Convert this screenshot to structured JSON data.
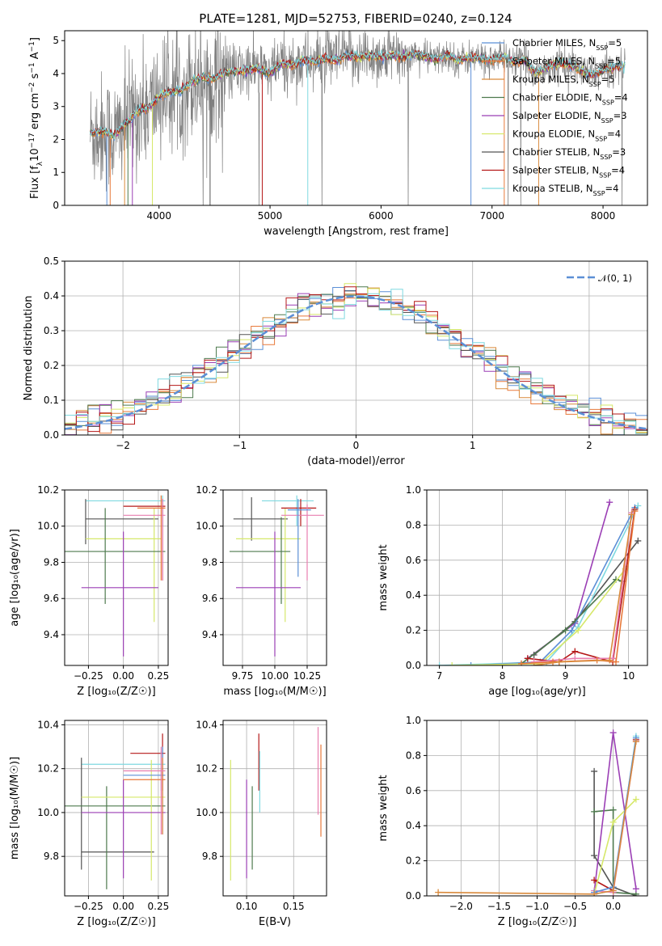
{
  "figure_title": "PLATE=1281, MJD=52753, FIBERID=0240, z=0.124",
  "colors": {
    "chabrier_miles": "#5b8fd6",
    "salpeter_miles": "#e8793a",
    "kroupa_miles": "#d98a3c",
    "chabrier_elodie": "#4e7a4e",
    "salpeter_elodie": "#9b3fb5",
    "kroupa_elodie": "#d6e86a",
    "chabrier_stelib": "#555555",
    "salpeter_stelib": "#b51818",
    "kroupa_stelib": "#7fd9e0",
    "pink": "#e87fb0",
    "data": "#808080"
  },
  "chart_data": [
    {
      "id": "spectrum",
      "type": "line",
      "xlabel": "wavelength [Angstrom, rest frame]",
      "ylabel": "Flux [f_λ 10^-17 erg cm^-2 s^-1 A^-1]",
      "xlim": [
        3150,
        8400
      ],
      "ylim": [
        0,
        5.3
      ],
      "xticks": [
        "4000",
        "5000",
        "6000",
        "7000",
        "8000"
      ],
      "yticks": [
        "0",
        "1",
        "2",
        "3",
        "4",
        "5"
      ],
      "legend_position": "top-right",
      "legend": [
        {
          "label": "Chabrier MILES, N",
          "sub": "SSP",
          "suffix": "=5",
          "color": "#5b8fd6"
        },
        {
          "label": "Salpeter MILES, N",
          "sub": "SSP",
          "suffix": "=5",
          "color": "#e8793a"
        },
        {
          "label": "Kroupa MILES, N",
          "sub": "SSP",
          "suffix": "=5",
          "color": "#d98a3c"
        },
        {
          "label": "Chabrier ELODIE, N",
          "sub": "SSP",
          "suffix": "=4",
          "color": "#4e7a4e"
        },
        {
          "label": "Salpeter ELODIE, N",
          "sub": "SSP",
          "suffix": "=3",
          "color": "#9b3fb5"
        },
        {
          "label": "Kroupa ELODIE, N",
          "sub": "SSP",
          "suffix": "=4",
          "color": "#d6e86a"
        },
        {
          "label": "Chabrier STELIB, N",
          "sub": "SSP",
          "suffix": "=3",
          "color": "#555555"
        },
        {
          "label": "Salpeter STELIB, N",
          "sub": "SSP",
          "suffix": "=4",
          "color": "#b51818"
        },
        {
          "label": "Kroupa STELIB, N",
          "sub": "SSP",
          "suffix": "=4",
          "color": "#7fd9e0"
        }
      ],
      "model_x": [
        3380,
        3500,
        3600,
        3700,
        3800,
        3900,
        4000,
        4100,
        4200,
        4300,
        4400,
        4500,
        4600,
        4700,
        4800,
        4900,
        5000,
        5100,
        5200,
        5300,
        5400,
        5500,
        5600,
        5700,
        5800,
        5900,
        6000,
        6100,
        6200,
        6300,
        6400,
        6500,
        6600,
        6700,
        6800,
        6900,
        7000,
        7100,
        7200,
        7300,
        7400,
        7500,
        7600,
        7700,
        7800,
        7900,
        8000,
        8100,
        8200
      ],
      "model_y": [
        2.2,
        2.25,
        2.1,
        2.5,
        2.85,
        2.95,
        3.3,
        3.45,
        3.5,
        3.75,
        3.9,
        3.85,
        4.05,
        4.05,
        4.1,
        4.15,
        4.0,
        4.3,
        4.25,
        4.4,
        4.35,
        4.45,
        4.4,
        4.55,
        4.5,
        4.55,
        4.5,
        4.55,
        4.5,
        4.6,
        4.5,
        4.45,
        4.55,
        4.4,
        4.5,
        4.45,
        4.4,
        4.5,
        4.35,
        4.4,
        4.0,
        4.2,
        4.3,
        4.25,
        4.1,
        3.95,
        4.1,
        4.2,
        4.25
      ]
    },
    {
      "id": "residuals",
      "type": "line",
      "xlabel": "(data-model)/error",
      "ylabel": "Normed distribution",
      "xlim": [
        -2.5,
        2.5
      ],
      "ylim": [
        0,
        0.5
      ],
      "xticks": [
        "−2",
        "−1",
        "0",
        "1",
        "2"
      ],
      "yticks": [
        "0.0",
        "0.1",
        "0.2",
        "0.3",
        "0.4",
        "0.5"
      ],
      "legend": "𝒩(0, 1)",
      "legend_position": "top-right",
      "grid": true
    },
    {
      "id": "age_vs_Z",
      "type": "scatter",
      "xlabel": "Z [log₁₀(Z/Z☉)]",
      "ylabel": "age  [log₁₀(age/yr)]",
      "xlim": [
        -0.42,
        0.32
      ],
      "ylim": [
        9.23,
        10.2
      ],
      "xticks": [
        "−0.25",
        "0.00",
        "0.25"
      ],
      "yticks": [
        "9.4",
        "9.6",
        "9.8",
        "10.0",
        "10.2"
      ],
      "grid": true
    },
    {
      "id": "age_vs_mass",
      "type": "scatter",
      "xlabel": "mass [log₁₀(M/M☉)]",
      "ylabel": "",
      "xlim": [
        9.6,
        10.4
      ],
      "ylim": [
        9.23,
        10.2
      ],
      "xticks": [
        "9.75",
        "10.00",
        "10.25"
      ],
      "yticks": [
        "9.4",
        "9.6",
        "9.8",
        "10.0",
        "10.2"
      ],
      "grid": true
    },
    {
      "id": "massweight_vs_age",
      "type": "line",
      "xlabel": "age  [log₁₀(age/yr)]",
      "ylabel": "mass weight",
      "xlim": [
        6.8,
        10.3
      ],
      "ylim": [
        0,
        1.0
      ],
      "xticks": [
        "7",
        "8",
        "9",
        "10"
      ],
      "yticks": [
        "0.0",
        "0.2",
        "0.4",
        "0.6",
        "0.8",
        "1.0"
      ],
      "grid": true,
      "series": [
        {
          "color": "#9b3fb5",
          "x": [
            8.4,
            9.15,
            9.7
          ],
          "y": [
            0.04,
            0.24,
            0.93
          ]
        },
        {
          "color": "#555555",
          "x": [
            8.5,
            9.15,
            10.15
          ],
          "y": [
            0.06,
            0.25,
            0.71
          ]
        },
        {
          "color": "#7fd9e0",
          "x": [
            7.0,
            8.7,
            9.2,
            10.15
          ],
          "y": [
            0.0,
            0.02,
            0.22,
            0.91
          ]
        },
        {
          "color": "#5b8fd6",
          "x": [
            7.5,
            8.6,
            9.1,
            10.1
          ],
          "y": [
            0.0,
            0.02,
            0.2,
            0.9
          ]
        },
        {
          "color": "#4e7a4e",
          "x": [
            8.3,
            9.0,
            9.8,
            9.9
          ],
          "y": [
            0.01,
            0.2,
            0.49,
            0.48
          ]
        },
        {
          "color": "#d6e86a",
          "x": [
            7.2,
            8.6,
            9.2,
            9.95
          ],
          "y": [
            0.0,
            0.01,
            0.2,
            0.55
          ]
        },
        {
          "color": "#b51818",
          "x": [
            8.4,
            8.9,
            9.15,
            9.75,
            10.1
          ],
          "y": [
            0.04,
            0.02,
            0.08,
            0.02,
            0.89
          ]
        },
        {
          "color": "#e87fb0",
          "x": [
            8.5,
            9.15,
            9.75,
            10.05
          ],
          "y": [
            0.02,
            0.04,
            0.04,
            0.87
          ]
        },
        {
          "color": "#e8793a",
          "x": [
            8.3,
            8.8,
            9.5,
            9.8,
            10.1
          ],
          "y": [
            0.01,
            0.02,
            0.03,
            0.02,
            0.88
          ]
        },
        {
          "color": "#d98a3c",
          "x": [
            8.5,
            8.9,
            9.7,
            10.05
          ],
          "y": [
            0.0,
            0.02,
            0.03,
            0.86
          ]
        }
      ]
    },
    {
      "id": "mass_vs_Z",
      "type": "scatter",
      "xlabel": "Z [log₁₀(Z/Z☉)]",
      "ylabel": "mass [log₁₀(M/M☉)]",
      "xlim": [
        -0.42,
        0.32
      ],
      "ylim": [
        9.62,
        10.42
      ],
      "xticks": [
        "−0.25",
        "0.00",
        "0.25"
      ],
      "yticks": [
        "9.8",
        "10.0",
        "10.2",
        "10.4"
      ],
      "grid": true
    },
    {
      "id": "mass_vs_ebv",
      "type": "scatter",
      "xlabel": "E(B-V)",
      "ylabel": "",
      "xlim": [
        0.075,
        0.185
      ],
      "ylim": [
        9.62,
        10.42
      ],
      "xticks": [
        "0.10",
        "0.15"
      ],
      "yticks": [
        "9.8",
        "10.0",
        "10.2",
        "10.4"
      ],
      "grid": true
    },
    {
      "id": "massweight_vs_Z",
      "type": "line",
      "xlabel": "Z [log₁₀(Z/Z☉)]",
      "ylabel": "mass weight",
      "xlim": [
        -2.45,
        0.45
      ],
      "ylim": [
        0,
        1.0
      ],
      "xticks": [
        "−2.0",
        "−1.5",
        "−1.0",
        "−0.5",
        "0.0"
      ],
      "yticks": [
        "0.0",
        "0.2",
        "0.4",
        "0.6",
        "0.8",
        "1.0"
      ],
      "grid": true,
      "series": [
        {
          "color": "#555555",
          "x": [
            -0.25,
            -0.25,
            0.0,
            0.3
          ],
          "y": [
            0.71,
            0.23,
            0.05,
            0.0
          ]
        },
        {
          "color": "#4e7a4e",
          "x": [
            -0.25,
            0.0,
            0.0,
            0.3
          ],
          "y": [
            0.48,
            0.49,
            0.02,
            0.01
          ]
        },
        {
          "color": "#9b3fb5",
          "x": [
            -0.25,
            0.0,
            0.3
          ],
          "y": [
            0.02,
            0.93,
            0.04
          ]
        },
        {
          "color": "#b51818",
          "x": [
            -0.25,
            0.0,
            0.3
          ],
          "y": [
            0.09,
            0.03,
            0.89
          ]
        },
        {
          "color": "#7fd9e0",
          "x": [
            -0.25,
            0.0,
            0.3
          ],
          "y": [
            0.01,
            0.03,
            0.91
          ]
        },
        {
          "color": "#e87fb0",
          "x": [
            -0.25,
            0.0,
            0.3
          ],
          "y": [
            0.03,
            0.02,
            0.88
          ]
        },
        {
          "color": "#d6e86a",
          "x": [
            -0.25,
            0.0,
            0.3
          ],
          "y": [
            0.01,
            0.42,
            0.55
          ]
        },
        {
          "color": "#5b8fd6",
          "x": [
            -0.25,
            0.0,
            0.3
          ],
          "y": [
            0.02,
            0.05,
            0.9
          ]
        },
        {
          "color": "#d98a3c",
          "x": [
            -2.3,
            -0.25,
            0.0,
            0.3
          ],
          "y": [
            0.02,
            0.01,
            0.03,
            0.88
          ]
        }
      ]
    }
  ]
}
